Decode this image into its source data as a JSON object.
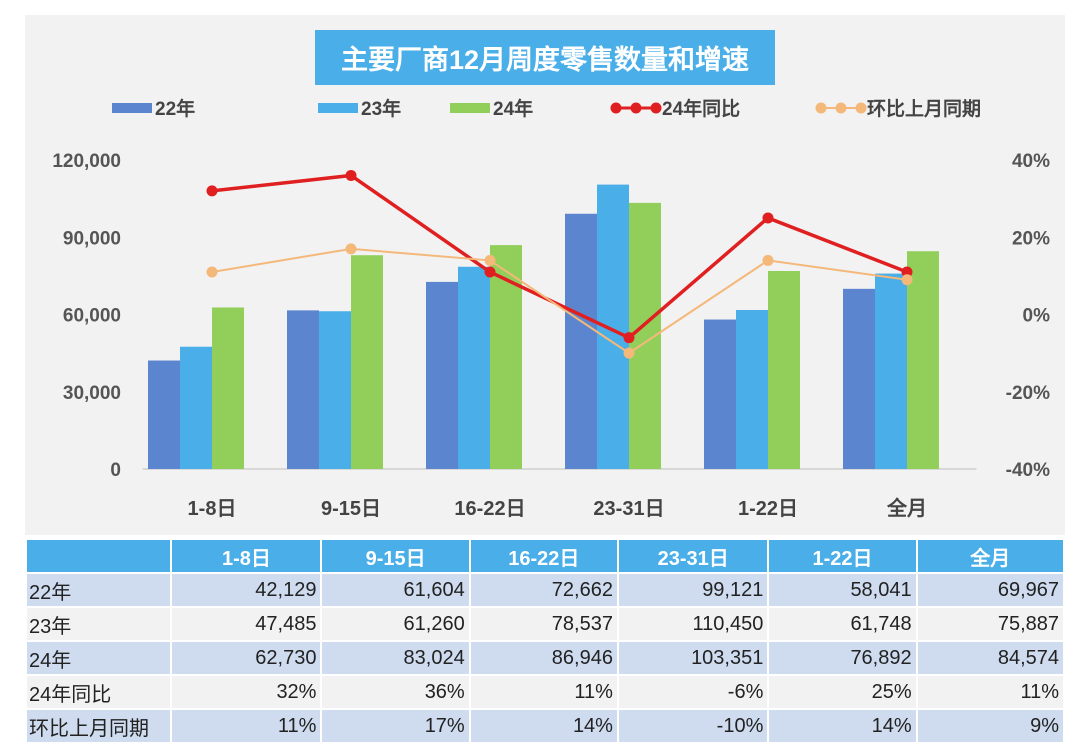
{
  "chart_data": {
    "type": "bar+line",
    "title": "主要厂商12月周度零售数量和增速",
    "categories": [
      "1-8日",
      "9-15日",
      "16-22日",
      "23-31日",
      "1-22日",
      "全月"
    ],
    "series": [
      {
        "name": "22年",
        "type": "bar",
        "axis": "left",
        "color": "#5b86cf",
        "values": [
          42129,
          61604,
          72662,
          99121,
          58041,
          69967
        ]
      },
      {
        "name": "23年",
        "type": "bar",
        "axis": "left",
        "color": "#4aaee8",
        "values": [
          47485,
          61260,
          78537,
          110450,
          61748,
          75887
        ]
      },
      {
        "name": "24年",
        "type": "bar",
        "axis": "left",
        "color": "#92cf5a",
        "values": [
          62730,
          83024,
          86946,
          103351,
          76892,
          84574
        ]
      },
      {
        "name": "24年同比",
        "type": "line",
        "axis": "right",
        "color": "#e02020",
        "values": [
          32,
          36,
          11,
          -6,
          25,
          11
        ]
      },
      {
        "name": "环比上月同期",
        "type": "line",
        "axis": "right",
        "color": "#f4b87a",
        "values": [
          11,
          17,
          14,
          -10,
          14,
          9
        ]
      }
    ],
    "left_axis": {
      "ylim": [
        0,
        120000
      ],
      "ticks": [
        "0",
        "30,000",
        "60,000",
        "90,000",
        "120,000"
      ]
    },
    "right_axis": {
      "ylim": [
        -40,
        40
      ],
      "ticks": [
        "-40%",
        "-20%",
        "0%",
        "20%",
        "40%"
      ]
    },
    "legend": "top",
    "grid": false
  },
  "table": {
    "header": [
      "",
      "1-8日",
      "9-15日",
      "16-22日",
      "23-31日",
      "1-22日",
      "全月"
    ],
    "rows": [
      [
        "22年",
        "42,129",
        "61,604",
        "72,662",
        "99,121",
        "58,041",
        "69,967"
      ],
      [
        "23年",
        "47,485",
        "61,260",
        "78,537",
        "110,450",
        "61,748",
        "75,887"
      ],
      [
        "24年",
        "62,730",
        "83,024",
        "86,946",
        "103,351",
        "76,892",
        "84,574"
      ],
      [
        "24年同比",
        "32%",
        "36%",
        "11%",
        "-6%",
        "25%",
        "11%"
      ],
      [
        "环比上月同期",
        "11%",
        "17%",
        "14%",
        "-10%",
        "14%",
        "9%"
      ]
    ]
  }
}
